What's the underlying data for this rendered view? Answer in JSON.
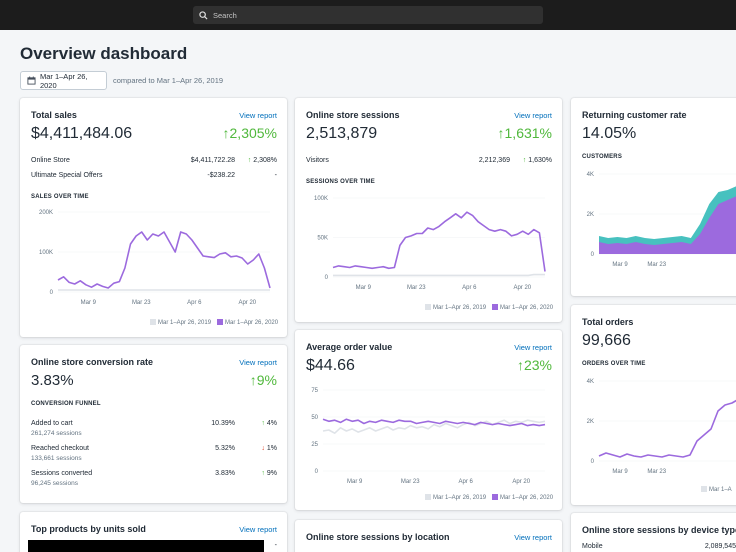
{
  "search": {
    "placeholder": "Search"
  },
  "page": {
    "title": "Overview dashboard",
    "date_range": "Mar 1–Apr 26, 2020",
    "compare": "compared to Mar 1–Apr 26, 2019"
  },
  "colors": {
    "accent": "#9c6ade",
    "previous": "#dfe3e8",
    "teal": "#47c1bf",
    "positive": "#50b83c",
    "negative": "#de3618",
    "link": "#006fbb"
  },
  "view_report": "View report",
  "total_sales": {
    "title": "Total sales",
    "value": "$4,411,484.06",
    "delta": "2,305%",
    "rows": [
      {
        "label": "Online Store",
        "value": "$4,411,722.28",
        "pct": "2,308%"
      },
      {
        "label": "Ultimate Special Offers",
        "value": "-$238.22",
        "pct": "-"
      }
    ],
    "chart_label": "SALES OVER TIME",
    "y_ticks": [
      "200K",
      "100K",
      "0"
    ],
    "x_ticks": [
      "Mar 9",
      "Mar 23",
      "Apr 6",
      "Apr 20"
    ],
    "legend": [
      "Mar 1–Apr 26, 2019",
      "Mar 1–Apr 26, 2020"
    ]
  },
  "sessions": {
    "title": "Online store sessions",
    "value": "2,513,879",
    "delta": "1,631%",
    "rows": [
      {
        "label": "Visitors",
        "value": "2,212,369",
        "pct": "1,630%"
      }
    ],
    "chart_label": "SESSIONS OVER TIME",
    "y_ticks": [
      "100K",
      "50K",
      "0"
    ],
    "x_ticks": [
      "Mar 9",
      "Mar 23",
      "Apr 6",
      "Apr 20"
    ],
    "legend": [
      "Mar 1–Apr 26, 2019",
      "Mar 1–Apr 26, 2020"
    ]
  },
  "returning": {
    "title": "Returning customer rate",
    "value": "14.05%",
    "chart_label": "CUSTOMERS",
    "y_ticks": [
      "4K",
      "2K",
      "0"
    ],
    "x_ticks": [
      "Mar 9",
      "Mar 23"
    ]
  },
  "conversion": {
    "title": "Online store conversion rate",
    "value": "3.83%",
    "delta": "9%",
    "funnel_label": "CONVERSION FUNNEL",
    "rows": [
      {
        "label": "Added to cart",
        "sub": "261,274 sessions",
        "value": "10.39%",
        "pct": "4%",
        "dir": "up"
      },
      {
        "label": "Reached checkout",
        "sub": "133,661 sessions",
        "value": "5.32%",
        "pct": "1%",
        "dir": "down"
      },
      {
        "label": "Sessions converted",
        "sub": "96,245 sessions",
        "value": "3.83%",
        "pct": "9%",
        "dir": "up"
      }
    ]
  },
  "aov": {
    "title": "Average order value",
    "value": "$44.66",
    "delta": "23%",
    "y_ticks": [
      "75",
      "50",
      "25",
      "0"
    ],
    "x_ticks": [
      "Mar 9",
      "Mar 23",
      "Apr 6",
      "Apr 20"
    ],
    "legend": [
      "Mar 1–Apr 26, 2019",
      "Mar 1–Apr 26, 2020"
    ]
  },
  "total_orders": {
    "title": "Total orders",
    "value": "99,666",
    "chart_label": "ORDERS OVER TIME",
    "y_ticks": [
      "4K",
      "2K",
      "0"
    ],
    "x_ticks": [
      "Mar 9",
      "Mar 23"
    ],
    "legend": [
      "Mar 1–A"
    ]
  },
  "top_products": {
    "title": "Top products by units sold",
    "row_pct": "-"
  },
  "location": {
    "title": "Online store sessions by location"
  },
  "device": {
    "title": "Online store sessions by device type",
    "rows": [
      {
        "label": "Mobile",
        "value": "2,089,545"
      }
    ]
  },
  "chart_data": [
    {
      "type": "line",
      "title": "SALES OVER TIME",
      "ylim": [
        0,
        200000
      ],
      "x_labels": [
        "Mar 9",
        "Mar 23",
        "Apr 6",
        "Apr 20"
      ],
      "series": [
        {
          "name": "Mar 1–Apr 26, 2020",
          "color": "#9c6ade",
          "values": [
            30000,
            38000,
            24000,
            20000,
            28000,
            18000,
            12000,
            20000,
            14000,
            10000,
            22000,
            26000,
            60000,
            120000,
            140000,
            150000,
            130000,
            145000,
            140000,
            150000,
            125000,
            100000,
            150000,
            145000,
            130000,
            110000,
            90000,
            88000,
            86000,
            95000,
            98000,
            88000,
            90000,
            85000,
            70000,
            80000,
            95000,
            60000,
            10000
          ]
        },
        {
          "name": "Mar 1–Apr 26, 2019",
          "color": "#dfe3e8",
          "values": [
            5000,
            5000,
            5000,
            5000,
            5000,
            5000,
            5000,
            5000,
            5000,
            5000,
            5000,
            5000,
            5000,
            5000,
            5000,
            5000,
            5000,
            5000,
            5000,
            5000,
            5000,
            5000,
            5000,
            5000,
            5000,
            5000,
            5000,
            5000,
            5000,
            5000,
            5000,
            5000,
            5000,
            5000,
            5000,
            5000,
            5000,
            5000,
            5000
          ]
        }
      ]
    },
    {
      "type": "line",
      "title": "SESSIONS OVER TIME",
      "ylim": [
        0,
        100000
      ],
      "x_labels": [
        "Mar 9",
        "Mar 23",
        "Apr 6",
        "Apr 20"
      ],
      "series": [
        {
          "name": "Mar 1–Apr 26, 2020",
          "color": "#9c6ade",
          "values": [
            12000,
            14000,
            13000,
            12000,
            14000,
            13000,
            12000,
            11000,
            12000,
            13000,
            11000,
            12000,
            40000,
            50000,
            52000,
            55000,
            55000,
            62000,
            60000,
            64000,
            70000,
            75000,
            80000,
            75000,
            82000,
            78000,
            70000,
            65000,
            60000,
            58000,
            60000,
            58000,
            52000,
            54000,
            58000,
            54000,
            60000,
            56000,
            7000
          ]
        },
        {
          "name": "Mar 1–Apr 26, 2019",
          "color": "#dfe3e8",
          "values": [
            2000,
            2000,
            2000,
            2000,
            2000,
            2000,
            2000,
            2000,
            2000,
            2000,
            2000,
            2000,
            2000,
            2000,
            2000,
            2000,
            2000,
            2000,
            2000,
            2000,
            2000,
            2000,
            2000,
            2000,
            2000,
            2000,
            2000,
            2000,
            2000,
            2000,
            2000,
            2000,
            2000,
            2000,
            2000,
            2000,
            3000,
            3000,
            3000
          ]
        }
      ]
    },
    {
      "type": "area",
      "title": "CUSTOMERS",
      "ylim": [
        0,
        4000
      ],
      "x_labels": [
        "Mar 9",
        "Mar 23"
      ],
      "series": [
        {
          "name": "teal",
          "color": "#47c1bf",
          "values": [
            900,
            800,
            850,
            800,
            900,
            800,
            750,
            800,
            850,
            900,
            800,
            1500,
            2500,
            3100,
            3200,
            3400,
            3600
          ]
        },
        {
          "name": "purple",
          "color": "#9c6ade",
          "values": [
            600,
            500,
            550,
            500,
            600,
            500,
            450,
            500,
            550,
            600,
            500,
            1000,
            1800,
            2500,
            2700,
            2900,
            3100
          ]
        }
      ]
    },
    {
      "type": "line",
      "title": "Average order value",
      "ylim": [
        0,
        75
      ],
      "x_labels": [
        "Mar 9",
        "Mar 23",
        "Apr 6",
        "Apr 20"
      ],
      "series": [
        {
          "name": "Mar 1–Apr 26, 2020",
          "color": "#9c6ade",
          "values": [
            48,
            46,
            47,
            45,
            48,
            46,
            47,
            44,
            46,
            45,
            47,
            46,
            45,
            47,
            46,
            46,
            44,
            45,
            46,
            45,
            44,
            46,
            45,
            44,
            45,
            44,
            43,
            45,
            44,
            43,
            44,
            43,
            42,
            43,
            44,
            42,
            43,
            42,
            43
          ]
        },
        {
          "name": "Mar 1–Apr 26, 2019",
          "color": "#dfe3e8",
          "values": [
            37,
            38,
            35,
            40,
            37,
            39,
            36,
            38,
            40,
            37,
            39,
            41,
            38,
            40,
            39,
            42,
            40,
            41,
            39,
            43,
            41,
            44,
            42,
            40,
            43,
            45,
            42,
            44,
            46,
            43,
            45,
            47,
            44,
            46,
            45,
            47,
            46,
            45,
            46
          ]
        }
      ]
    },
    {
      "type": "line",
      "title": "ORDERS OVER TIME",
      "ylim": [
        0,
        4000
      ],
      "x_labels": [
        "Mar 9",
        "Mar 23"
      ],
      "series": [
        {
          "name": "Mar 1–A",
          "color": "#9c6ade",
          "values": [
            250,
            400,
            300,
            200,
            350,
            250,
            200,
            300,
            250,
            200,
            300,
            250,
            200,
            300,
            1000,
            1300,
            1600,
            2500,
            2800,
            2900,
            3100,
            3200
          ]
        }
      ]
    }
  ]
}
